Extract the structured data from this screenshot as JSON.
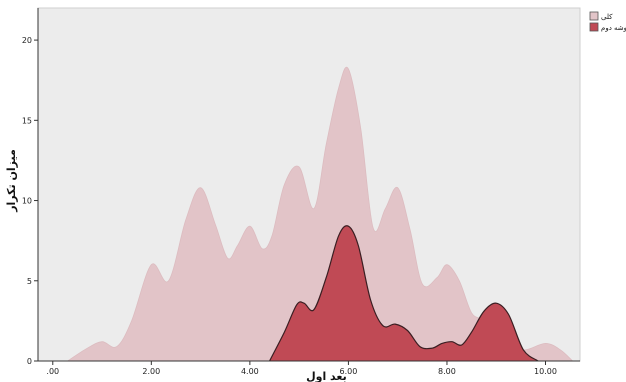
{
  "chart_data": {
    "type": "area",
    "title": "",
    "xlabel": "بعد اول",
    "ylabel": "میزان تکرار",
    "xlim": [
      -0.3,
      10.7
    ],
    "ylim": [
      0,
      22
    ],
    "xticks": [
      0,
      2,
      4,
      6,
      8,
      10
    ],
    "xtick_labels": [
      ".00",
      "2.00",
      "4.00",
      "6.00",
      "8.00",
      "10.00"
    ],
    "yticks": [
      0,
      5,
      10,
      15,
      20
    ],
    "ytick_labels": [
      "0",
      "5",
      "10",
      "15",
      "20"
    ],
    "grid": false,
    "legend_position": "top-right",
    "series": [
      {
        "name": "کلی",
        "color": "#e2c4c8",
        "stroke": "#dcbcc0",
        "x": [
          0.3,
          0.7,
          1.0,
          1.3,
          1.6,
          2.0,
          2.35,
          2.7,
          3.0,
          3.3,
          3.55,
          3.75,
          4.0,
          4.25,
          4.45,
          4.7,
          5.0,
          5.3,
          5.55,
          5.8,
          6.0,
          6.25,
          6.5,
          6.75,
          7.0,
          7.25,
          7.5,
          7.8,
          8.0,
          8.25,
          8.5,
          8.75,
          9.0,
          9.3,
          9.6,
          10.0,
          10.3,
          10.55
        ],
        "y": [
          0.0,
          0.8,
          1.2,
          0.9,
          2.5,
          6.0,
          5.0,
          8.8,
          10.8,
          8.5,
          6.4,
          7.2,
          8.4,
          7.0,
          7.8,
          11.0,
          12.1,
          9.5,
          13.5,
          17.0,
          18.2,
          14.5,
          8.3,
          9.5,
          10.8,
          8.2,
          4.8,
          5.2,
          6.0,
          5.0,
          3.0,
          2.5,
          1.2,
          0.9,
          0.7,
          1.1,
          0.7,
          0.0
        ]
      },
      {
        "name": "خوشه دوم",
        "color": "#c04a55",
        "stroke": "#3a1e22",
        "x": [
          4.4,
          4.7,
          4.95,
          5.1,
          5.3,
          5.55,
          5.8,
          6.0,
          6.2,
          6.45,
          6.7,
          6.95,
          7.2,
          7.45,
          7.7,
          7.9,
          8.1,
          8.3,
          8.5,
          8.75,
          9.0,
          9.25,
          9.55,
          9.85
        ],
        "y": [
          0.0,
          1.8,
          3.5,
          3.6,
          3.2,
          5.2,
          7.8,
          8.4,
          7.2,
          3.8,
          2.2,
          2.3,
          1.9,
          0.9,
          0.8,
          1.1,
          1.2,
          1.0,
          1.8,
          3.1,
          3.6,
          2.9,
          0.7,
          0.0
        ]
      }
    ]
  }
}
